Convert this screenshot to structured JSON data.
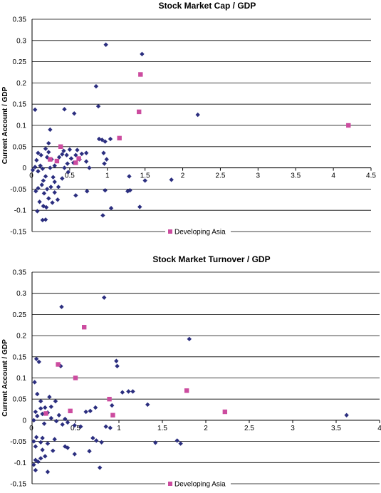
{
  "chart_data": [
    {
      "type": "scatter",
      "title": "Stock Market Cap / GDP",
      "xlabel": "",
      "ylabel": "Current Account / GDP",
      "xlim": [
        0,
        4.5
      ],
      "ylim": [
        -0.15,
        0.35
      ],
      "x_ticks": [
        "0.5",
        "1",
        "1.5",
        "2",
        "2.5",
        "3",
        "3.5",
        "4",
        "4.5"
      ],
      "y_ticks": [
        "0.35",
        "0.3",
        "0.25",
        "0.2",
        "0.15",
        "0.1",
        "0.05",
        "0",
        "-0.05",
        "-0.1",
        "-0.15"
      ],
      "grid": "horizontal",
      "legend_position": "bottom",
      "series": [
        {
          "shape": "diamond",
          "color": "#2b2e7f",
          "points": [
            [
              0.98,
              0.29
            ],
            [
              1.46,
              0.268
            ],
            [
              0.85,
              0.192
            ],
            [
              0.88,
              0.145
            ],
            [
              0.43,
              0.138
            ],
            [
              0.56,
              0.128
            ],
            [
              2.2,
              0.125
            ],
            [
              0.04,
              0.137
            ],
            [
              0.24,
              0.09
            ],
            [
              0.89,
              0.068
            ],
            [
              0.93,
              0.066
            ],
            [
              0.97,
              0.062
            ],
            [
              1.04,
              0.068
            ],
            [
              0.22,
              0.058
            ],
            [
              0.5,
              0.043
            ],
            [
              0.18,
              0.045
            ],
            [
              0.42,
              0.04
            ],
            [
              0.6,
              0.042
            ],
            [
              0.22,
              0.037
            ],
            [
              0.08,
              0.035
            ],
            [
              0.4,
              0.032
            ],
            [
              0.46,
              0.03
            ],
            [
              0.58,
              0.03
            ],
            [
              0.66,
              0.033
            ],
            [
              0.72,
              0.035
            ],
            [
              0.95,
              0.035
            ],
            [
              0.12,
              0.03
            ],
            [
              0.2,
              0.025
            ],
            [
              0.36,
              0.025
            ],
            [
              0.52,
              0.022
            ],
            [
              0.63,
              0.02
            ],
            [
              0.26,
              0.02
            ],
            [
              0.06,
              0.018
            ],
            [
              0.47,
              0.01
            ],
            [
              0.55,
              0.012
            ],
            [
              0.72,
              0.015
            ],
            [
              0.99,
              0.02
            ],
            [
              0.96,
              0.01
            ],
            [
              0.3,
              0.005
            ],
            [
              0.11,
              0.005
            ],
            [
              0.04,
              0.002
            ],
            [
              0.14,
              -0.002
            ],
            [
              0.24,
              0.0
            ],
            [
              0.43,
              0.0
            ],
            [
              0.76,
              0.0
            ],
            [
              0.01,
              -0.005
            ],
            [
              0.08,
              -0.008
            ],
            [
              0.48,
              -0.01
            ],
            [
              0.18,
              -0.02
            ],
            [
              0.28,
              -0.022
            ],
            [
              0.4,
              -0.025
            ],
            [
              1.29,
              -0.02
            ],
            [
              0.15,
              -0.03
            ],
            [
              0.3,
              -0.033
            ],
            [
              1.5,
              -0.03
            ],
            [
              1.85,
              -0.028
            ],
            [
              0.13,
              -0.04
            ],
            [
              0.25,
              -0.045
            ],
            [
              0.35,
              -0.045
            ],
            [
              0.08,
              -0.048
            ],
            [
              0.2,
              -0.05
            ],
            [
              0.05,
              -0.055
            ],
            [
              0.73,
              -0.055
            ],
            [
              0.97,
              -0.053
            ],
            [
              1.27,
              -0.055
            ],
            [
              1.3,
              -0.053
            ],
            [
              0.16,
              -0.06
            ],
            [
              0.3,
              -0.058
            ],
            [
              0.58,
              -0.065
            ],
            [
              0.22,
              -0.072
            ],
            [
              0.34,
              -0.075
            ],
            [
              0.1,
              -0.08
            ],
            [
              0.27,
              -0.082
            ],
            [
              0.15,
              -0.09
            ],
            [
              1.05,
              -0.095
            ],
            [
              1.43,
              -0.092
            ],
            [
              0.07,
              -0.102
            ],
            [
              0.19,
              -0.093
            ],
            [
              0.94,
              -0.112
            ],
            [
              0.14,
              -0.123
            ],
            [
              0.18,
              -0.122
            ]
          ]
        },
        {
          "name": "Developing Asia",
          "shape": "square",
          "color": "#cc4c9f",
          "points": [
            [
              1.44,
              0.22
            ],
            [
              1.42,
              0.132
            ],
            [
              4.2,
              0.1
            ],
            [
              1.16,
              0.07
            ],
            [
              0.38,
              0.05
            ],
            [
              0.33,
              0.016
            ],
            [
              0.24,
              0.02
            ],
            [
              0.62,
              0.022
            ],
            [
              0.58,
              0.012
            ]
          ]
        }
      ]
    },
    {
      "type": "scatter",
      "title": "Stock Market Turnover / GDP",
      "xlabel": "",
      "ylabel": "Current Account / GDP",
      "xlim": [
        0,
        4
      ],
      "ylim": [
        -0.15,
        0.35
      ],
      "x_ticks": [
        "0.5",
        "1",
        "1.5",
        "2",
        "2.5",
        "3",
        "3.5",
        "4"
      ],
      "y_ticks": [
        "0.35",
        "0.3",
        "0.25",
        "0.2",
        "0.15",
        "0.1",
        "0.05",
        "0",
        "-0.05",
        "-0.1",
        "-0.15"
      ],
      "grid": "horizontal",
      "legend_position": "bottom",
      "series": [
        {
          "shape": "diamond",
          "color": "#2b2e7f",
          "points": [
            [
              0.83,
              0.29
            ],
            [
              0.34,
              0.268
            ],
            [
              1.81,
              0.192
            ],
            [
              0.05,
              0.145
            ],
            [
              0.08,
              0.138
            ],
            [
              0.97,
              0.14
            ],
            [
              0.98,
              0.128
            ],
            [
              0.33,
              0.128
            ],
            [
              0.03,
              0.09
            ],
            [
              1.04,
              0.066
            ],
            [
              1.11,
              0.068
            ],
            [
              1.16,
              0.068
            ],
            [
              0.06,
              0.062
            ],
            [
              0.2,
              0.055
            ],
            [
              0.1,
              0.045
            ],
            [
              0.27,
              0.045
            ],
            [
              1.33,
              0.037
            ],
            [
              0.92,
              0.035
            ],
            [
              0.15,
              0.03
            ],
            [
              0.22,
              0.032
            ],
            [
              0.1,
              0.028
            ],
            [
              0.73,
              0.03
            ],
            [
              0.62,
              0.02
            ],
            [
              0.67,
              0.022
            ],
            [
              0.04,
              0.02
            ],
            [
              0.18,
              0.018
            ],
            [
              3.62,
              0.012
            ],
            [
              0.12,
              0.015
            ],
            [
              0.31,
              0.012
            ],
            [
              0.06,
              0.01
            ],
            [
              0.22,
              0.005
            ],
            [
              0.38,
              0.003
            ],
            [
              0.02,
              0.0
            ],
            [
              0.28,
              -0.002
            ],
            [
              0.41,
              -0.005
            ],
            [
              0.14,
              -0.008
            ],
            [
              0.35,
              -0.01
            ],
            [
              0.49,
              -0.012
            ],
            [
              0.56,
              -0.015
            ],
            [
              0.85,
              -0.015
            ],
            [
              0.9,
              -0.018
            ],
            [
              0.05,
              -0.04
            ],
            [
              0.12,
              -0.042
            ],
            [
              0.26,
              -0.045
            ],
            [
              0.7,
              -0.042
            ],
            [
              0.74,
              -0.048
            ],
            [
              0.02,
              -0.05
            ],
            [
              0.1,
              -0.052
            ],
            [
              0.18,
              -0.055
            ],
            [
              0.8,
              -0.052
            ],
            [
              1.42,
              -0.053
            ],
            [
              1.67,
              -0.048
            ],
            [
              1.71,
              -0.055
            ],
            [
              0.04,
              -0.062
            ],
            [
              0.38,
              -0.062
            ],
            [
              0.41,
              -0.065
            ],
            [
              0.12,
              -0.07
            ],
            [
              0.24,
              -0.072
            ],
            [
              0.66,
              -0.073
            ],
            [
              0.15,
              -0.085
            ],
            [
              0.49,
              -0.08
            ],
            [
              0.04,
              -0.094
            ],
            [
              0.07,
              -0.098
            ],
            [
              0.1,
              -0.09
            ],
            [
              0.02,
              -0.105
            ],
            [
              0.78,
              -0.112
            ],
            [
              0.04,
              -0.118
            ],
            [
              0.18,
              -0.122
            ]
          ]
        },
        {
          "name": "Developing Asia",
          "shape": "square",
          "color": "#cc4c9f",
          "points": [
            [
              0.6,
              0.22
            ],
            [
              0.3,
              0.132
            ],
            [
              0.5,
              0.1
            ],
            [
              1.78,
              0.07
            ],
            [
              0.89,
              0.05
            ],
            [
              0.44,
              0.022
            ],
            [
              0.93,
              0.012
            ],
            [
              2.22,
              0.02
            ],
            [
              0.16,
              0.016
            ]
          ]
        }
      ]
    }
  ]
}
